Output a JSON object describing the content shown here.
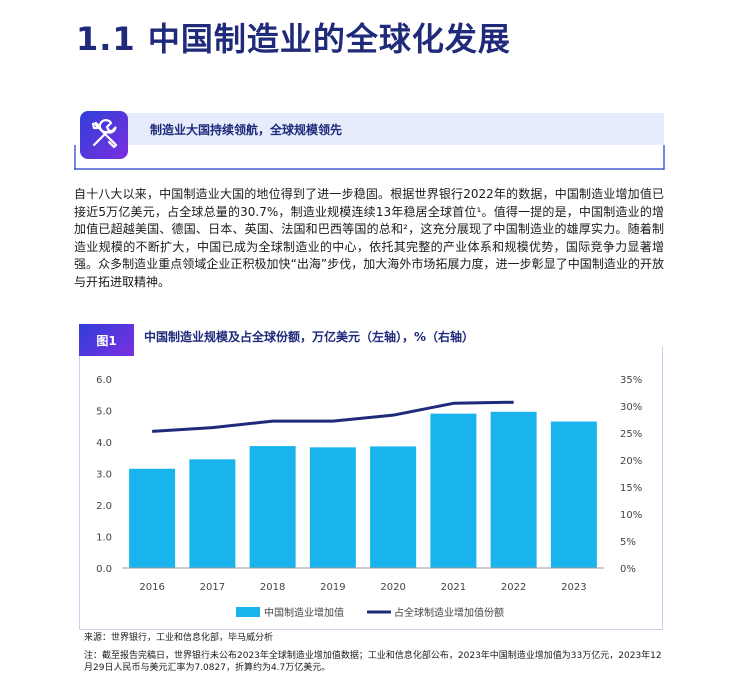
{
  "page_title": "1.1 中国制造业的全球化发展",
  "section": {
    "label": "制造业大国持续领航，全球规模领先",
    "icon": "tools-icon"
  },
  "body_text": "自十八大以来，中国制造业大国的地位得到了进一步稳固。根据世界银行2022年的数据，中国制造业增加值已接近5万亿美元，占全球总量的30.7%，制造业规模连续13年稳居全球首位¹。值得一提的是，中国制造业的增加值已超越美国、德国、日本、英国、法国和巴西等国的总和²，这充分展现了中国制造业的雄厚实力。随着制造业规模的不断扩大，中国已成为全球制造业的中心，依托其完整的产业体系和规模优势，国际竞争力显著增强。众多制造业重点领域企业正积极加快“出海”步伐，加大海外市场拓展力度，进一步彰显了中国制造业的开放与开拓进取精神。",
  "figure": {
    "label": "图1",
    "title": "中国制造业规模及占全球份额，万亿美元（左轴），%（右轴）"
  },
  "chart_data": {
    "type": "bar",
    "title": "中国制造业规模及占全球份额，万亿美元（左轴），%（右轴）",
    "categories": [
      "2016",
      "2017",
      "2018",
      "2019",
      "2020",
      "2021",
      "2022",
      "2023"
    ],
    "series": [
      {
        "name": "中国制造业增加值",
        "type": "bar",
        "axis": "left",
        "color": "#19b4ee",
        "values": [
          3.15,
          3.45,
          3.87,
          3.83,
          3.86,
          4.9,
          4.96,
          4.65
        ]
      },
      {
        "name": "占全球制造业增加值份额",
        "type": "line",
        "axis": "right",
        "color": "#1f2a7a",
        "values": [
          25.3,
          26.0,
          27.2,
          27.2,
          28.3,
          30.5,
          30.7,
          null
        ]
      }
    ],
    "y_left": {
      "range": [
        0,
        6
      ],
      "ticks": [
        "0.0",
        "1.0",
        "2.0",
        "3.0",
        "4.0",
        "5.0",
        "6.0"
      ]
    },
    "y_right": {
      "range": [
        0,
        35
      ],
      "ticks": [
        "0%",
        "5%",
        "10%",
        "15%",
        "20%",
        "25%",
        "30%",
        "35%"
      ]
    },
    "grid": false,
    "legend_position": "bottom"
  },
  "source": "来源：世界银行，工业和信息化部，毕马威分析",
  "note": "注：截至报告完稿日，世界银行未公布2023年全球制造业增加值数据；工业和信息化部公布，2023年中国制造业增加值为33万亿元，2023年12月29日人民币与美元汇率为7.0827，折算约为4.7万亿美元。"
}
